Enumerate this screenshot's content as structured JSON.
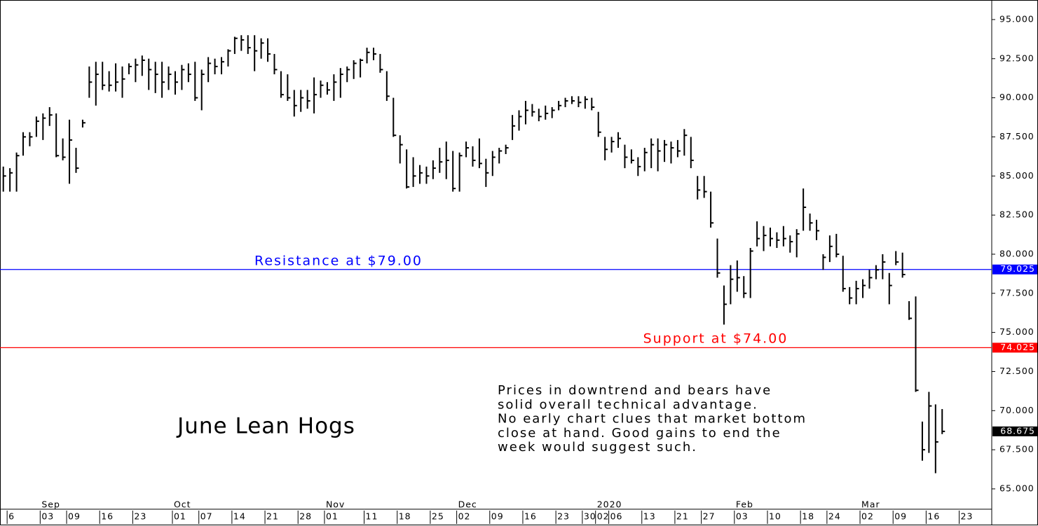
{
  "chart_data": {
    "type": "ohlc",
    "title": "June Lean Hogs",
    "color": "#000000",
    "categories": [
      null,
      "6",
      null,
      null,
      null,
      null,
      "03",
      null,
      null,
      null,
      "09",
      null,
      null,
      null,
      null,
      "16",
      null,
      null,
      null,
      null,
      "23",
      null,
      null,
      null,
      null,
      null,
      "01",
      null,
      null,
      null,
      "07",
      null,
      null,
      null,
      null,
      "14",
      null,
      null,
      null,
      null,
      "21",
      null,
      null,
      null,
      null,
      "28",
      null,
      null,
      null,
      "01",
      null,
      null,
      null,
      null,
      null,
      "11",
      null,
      null,
      null,
      null,
      "18",
      null,
      null,
      null,
      null,
      "25",
      null,
      null,
      null,
      "02",
      null,
      null,
      null,
      null,
      "09",
      null,
      null,
      null,
      null,
      "16",
      null,
      null,
      null,
      null,
      "23",
      null,
      null,
      null,
      "30",
      null,
      "02",
      null,
      "06",
      null,
      null,
      null,
      null,
      "13",
      null,
      null,
      null,
      null,
      "21",
      null,
      null,
      null,
      "27",
      null,
      null,
      null,
      null,
      "03",
      null,
      null,
      null,
      null,
      "10",
      null,
      null,
      null,
      null,
      "18",
      null,
      null,
      null,
      "24",
      null,
      null,
      null,
      null,
      "02",
      null,
      null,
      null,
      null,
      "09",
      null,
      null,
      null,
      null,
      "16",
      null,
      null,
      null,
      null,
      "23",
      null,
      null,
      null,
      null
    ],
    "month_labels": [
      null,
      null,
      null,
      null,
      null,
      null,
      "Sep",
      null,
      null,
      null,
      null,
      null,
      null,
      null,
      null,
      null,
      null,
      null,
      null,
      null,
      null,
      null,
      null,
      null,
      null,
      null,
      "Oct",
      null,
      null,
      null,
      null,
      null,
      null,
      null,
      null,
      null,
      null,
      null,
      null,
      null,
      null,
      null,
      null,
      null,
      null,
      null,
      null,
      null,
      null,
      "Nov",
      null,
      null,
      null,
      null,
      null,
      null,
      null,
      null,
      null,
      null,
      null,
      null,
      null,
      null,
      null,
      null,
      null,
      null,
      null,
      "Dec",
      null,
      null,
      null,
      null,
      null,
      null,
      null,
      null,
      null,
      null,
      null,
      null,
      null,
      null,
      null,
      null,
      null,
      null,
      null,
      null,
      "2020",
      null,
      null,
      null,
      null,
      null,
      null,
      null,
      null,
      null,
      null,
      null,
      null,
      null,
      null,
      null,
      null,
      null,
      null,
      null,
      null,
      "Feb",
      null,
      null,
      null,
      null,
      null,
      null,
      null,
      null,
      null,
      null,
      null,
      null,
      null,
      null,
      null,
      null,
      null,
      null,
      "Mar",
      null,
      null,
      null,
      null,
      null,
      null,
      null,
      null,
      null,
      null,
      null,
      null,
      null,
      null,
      null,
      null,
      null,
      null,
      null
    ],
    "high": [
      85.6,
      85.5,
      86.5,
      87.8,
      87.8,
      88.8,
      89,
      89.4,
      89,
      87.4,
      88.6,
      86.8,
      88.6,
      92,
      92.3,
      92.3,
      91.7,
      92.2,
      92,
      92.2,
      92.5,
      92.7,
      92.5,
      92.3,
      92.3,
      92,
      91.7,
      92.1,
      92.2,
      92.3,
      91.8,
      92.6,
      92.5,
      92.6,
      93.1,
      93.9,
      94,
      94,
      94,
      93.8,
      93.8,
      92.8,
      91.7,
      91.5,
      90.5,
      90.5,
      90.5,
      91.3,
      91.1,
      91,
      91.5,
      91.9,
      92,
      92.4,
      92.5,
      93.2,
      93.2,
      92.8,
      91.7,
      90,
      87.6,
      86.7,
      86.2,
      85.7,
      85.6,
      86,
      86.8,
      87.2,
      86.6,
      86.5,
      87.2,
      86.9,
      87.4,
      86.1,
      86.6,
      86.8,
      87,
      88.9,
      89.2,
      89.8,
      89.6,
      89.3,
      89.5,
      89.4,
      89.8,
      90,
      90.1,
      90.1,
      90.1,
      90,
      89.1,
      87.5,
      87.5,
      87.8,
      87,
      86.7,
      86.2,
      86.8,
      87.4,
      87.4,
      87.3,
      87.2,
      87.3,
      88,
      87.5,
      85,
      85,
      84,
      81,
      78,
      79.3,
      79.6,
      78.6,
      80.4,
      82.1,
      81.8,
      81.7,
      81.4,
      81.8,
      81.2,
      81.6,
      84.2,
      82.6,
      82.2,
      80,
      81.2,
      81.3,
      79.9,
      77.9,
      78.3,
      78.4,
      79,
      79.3,
      80,
      78.8,
      80.2,
      80.1,
      77,
      77.3,
      69.3,
      71.2,
      70.4,
      70.1,
      null,
      null,
      null,
      null,
      null,
      null,
      null
    ],
    "low": [
      84,
      84,
      84,
      86.3,
      86.9,
      87.5,
      87.3,
      88.2,
      86.2,
      86,
      84.5,
      85.2,
      88.1,
      90,
      89.5,
      90.5,
      90.4,
      90.4,
      90,
      91.5,
      91,
      91.4,
      90.5,
      90.3,
      90,
      90.5,
      90.2,
      90.5,
      91,
      89.8,
      89.2,
      91,
      91.5,
      91.5,
      92,
      92.8,
      93,
      92.8,
      91.7,
      92.5,
      92.3,
      91.5,
      90,
      89.8,
      88.8,
      89.1,
      89.3,
      89,
      90,
      90.2,
      89.8,
      90,
      91,
      91.2,
      91.3,
      92.2,
      92.4,
      91.6,
      89.8,
      87.5,
      85.8,
      84.2,
      84.3,
      84.5,
      84.5,
      84.8,
      85.2,
      84.8,
      84,
      84,
      86.2,
      85.6,
      85.5,
      84.3,
      85,
      85.8,
      86.4,
      87.3,
      87.9,
      88.3,
      88.8,
      88.5,
      88.6,
      88.7,
      89.2,
      89.4,
      89.6,
      89.4,
      89.3,
      89.2,
      87.5,
      86,
      86.5,
      86.8,
      85.5,
      85.8,
      85,
      85.3,
      85.5,
      85.3,
      85.9,
      85.8,
      86.2,
      86.3,
      85.5,
      83.5,
      83.6,
      81.7,
      78.5,
      75.5,
      76.8,
      77.6,
      77.2,
      77.2,
      80.5,
      80.2,
      80.5,
      80.4,
      80.5,
      80.1,
      79.8,
      81.5,
      81.5,
      80.9,
      79,
      79.5,
      79.8,
      77.6,
      76.8,
      76.8,
      77.2,
      77.8,
      78.4,
      78.4,
      76.8,
      79.3,
      78.5,
      75.8,
      71.2,
      66.8,
      67.3,
      66,
      68.5,
      null,
      null,
      null,
      null,
      null,
      null,
      null
    ],
    "close": [
      85,
      85.2,
      86.3,
      87.5,
      87.5,
      88.5,
      88.7,
      88.9,
      86.3,
      86.2,
      87.3,
      85.5,
      88.4,
      91,
      91.5,
      90.8,
      90.8,
      91,
      91.2,
      92,
      92.1,
      92.4,
      91.8,
      91.5,
      91,
      91.5,
      91,
      91.8,
      91.5,
      90,
      91.5,
      92.2,
      92,
      92.3,
      93,
      93.8,
      93.7,
      93.2,
      93,
      93.5,
      92.8,
      91.8,
      90.2,
      90,
      89.5,
      90,
      89.8,
      90.2,
      90.8,
      90.5,
      91,
      91.5,
      91.8,
      92.2,
      92.4,
      92.9,
      92.8,
      91.8,
      90.1,
      87.6,
      87,
      84.3,
      85,
      85.2,
      85,
      85.5,
      85.9,
      86,
      84.2,
      86.3,
      86.8,
      86,
      85.8,
      85.2,
      86.2,
      86.6,
      86.8,
      88.2,
      88.8,
      89.2,
      89.1,
      88.8,
      89,
      89.2,
      89.5,
      89.8,
      89.8,
      89.7,
      89.9,
      89.4,
      87.8,
      86.7,
      87.2,
      87.4,
      86.2,
      86,
      85.6,
      86.5,
      87,
      86.6,
      87,
      86.8,
      86.6,
      87.6,
      86,
      84.1,
      84,
      82,
      78.8,
      76.8,
      78.4,
      78.5,
      77.5,
      80.2,
      81,
      81.2,
      81,
      80.9,
      81,
      80.8,
      81.3,
      83,
      82,
      81.5,
      79.8,
      80.5,
      80,
      77.8,
      77.2,
      77.8,
      78,
      78.5,
      79,
      79.5,
      78,
      79.5,
      78.7,
      75.9,
      71.3,
      67.5,
      70.3,
      68,
      68.675,
      null,
      null,
      null,
      null,
      null,
      null,
      null
    ],
    "ylim": [
      63.7,
      96.25
    ],
    "yticks": [
      {
        "value": 65,
        "label": "65.000"
      },
      {
        "value": 67.5,
        "label": "67.500"
      },
      {
        "value": 70,
        "label": "70.000"
      },
      {
        "value": 72.5,
        "label": "72.500"
      },
      {
        "value": 75,
        "label": "75.000"
      },
      {
        "value": 77.5,
        "label": "77.500"
      },
      {
        "value": 80,
        "label": "80.000"
      },
      {
        "value": 82.5,
        "label": "82.500"
      },
      {
        "value": 85,
        "label": "85.000"
      },
      {
        "value": 87.5,
        "label": "87.500"
      },
      {
        "value": 90,
        "label": "90.000"
      },
      {
        "value": 92.5,
        "label": "92.500"
      },
      {
        "value": 95,
        "label": "95.000"
      }
    ],
    "levels": [
      {
        "value": 79.025,
        "color": "#0000ff",
        "label": "Resistance at $79.00"
      },
      {
        "value": 74.025,
        "color": "#ff0000",
        "label": "Support at $74.00"
      }
    ],
    "last_price": 68.675,
    "note": [
      "Prices in downtrend and bears have",
      "solid overall technical advantage.",
      "No early chart clues that market bottom",
      "close at hand. Good gains to end the",
      "week would suggest such."
    ]
  }
}
